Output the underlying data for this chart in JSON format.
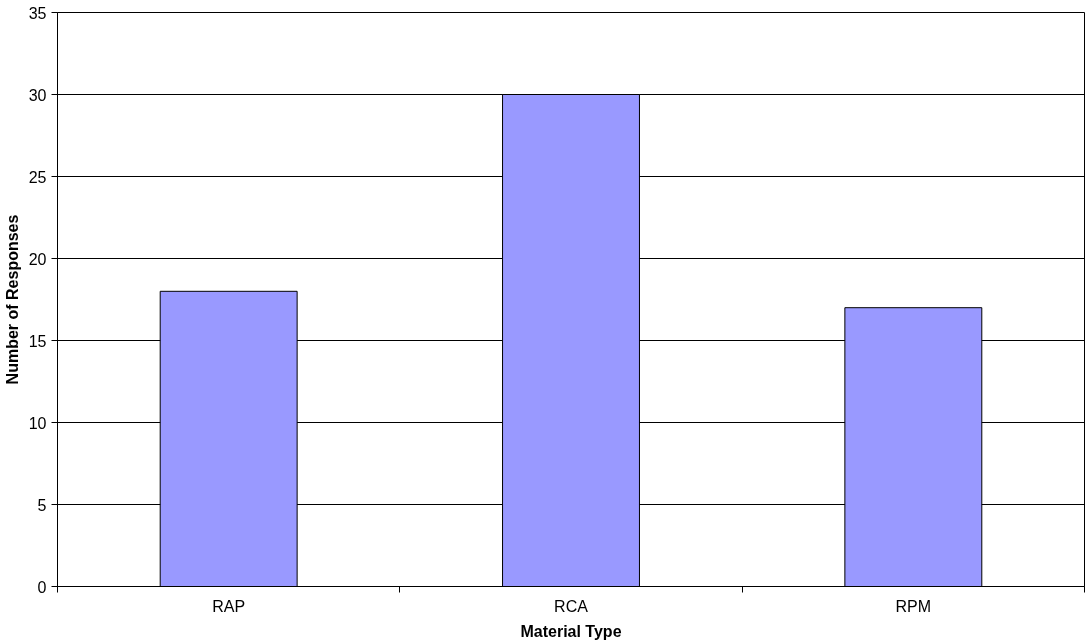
{
  "chart_data": {
    "type": "bar",
    "xlabel": "Material Type",
    "ylabel": "Number of Responses",
    "categories": [
      "RAP",
      "RCA",
      "RPM"
    ],
    "values": [
      18,
      30,
      17
    ],
    "color": "#9999ff",
    "ylim": [
      0,
      35
    ],
    "yticks": [
      0,
      5,
      10,
      15,
      20,
      25,
      30,
      35
    ],
    "grid": "y"
  }
}
